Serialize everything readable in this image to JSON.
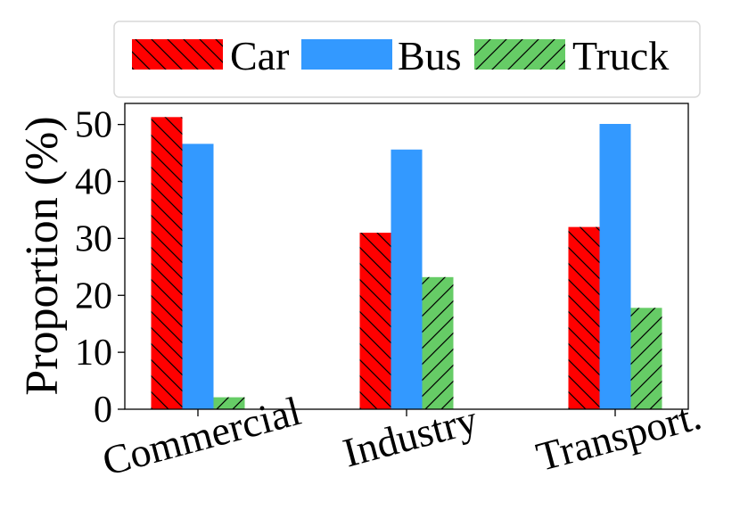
{
  "chart_data": {
    "type": "bar",
    "categories": [
      "Commercial",
      "Industry",
      "Transport."
    ],
    "series": [
      {
        "name": "Car",
        "values": [
          51.3,
          31.0,
          32.0
        ],
        "color": "#ff0000",
        "hatch": "backslash"
      },
      {
        "name": "Bus",
        "values": [
          46.6,
          45.6,
          50.1
        ],
        "color": "#3399ff",
        "hatch": "none"
      },
      {
        "name": "Truck",
        "values": [
          2.1,
          23.2,
          17.8
        ],
        "color": "#66cc66",
        "hatch": "slash"
      }
    ],
    "title": "",
    "xlabel": "",
    "ylabel": "Proportion (%)",
    "ylim": [
      0,
      53.7
    ],
    "yticks": [
      0,
      10,
      20,
      30,
      40,
      50
    ],
    "legend": "top",
    "grid": false
  }
}
